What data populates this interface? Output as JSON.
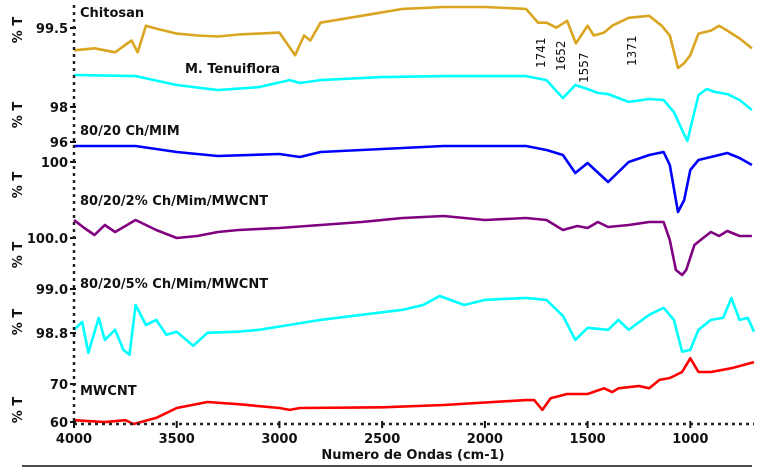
{
  "chart_data": {
    "type": "line",
    "layout": "stacked-panels",
    "xlabel": "Numero de Ondas (cm-1)",
    "xlim": [
      4000,
      690
    ],
    "xticks": [
      4000,
      3500,
      3000,
      2500,
      2000,
      1500,
      1000
    ],
    "x_reversed": true,
    "grid": false,
    "annotations": [
      "1741",
      "1652",
      "1557",
      "1371"
    ],
    "panels": [
      {
        "name": "Chitosan",
        "ylabel": "% T",
        "color": "#DAA520",
        "ylim": [
          99.08,
          99.74
        ],
        "yticks": [
          "99.5"
        ],
        "x": [
          4000,
          3900,
          3800,
          3720,
          3690,
          3650,
          3600,
          3500,
          3400,
          3300,
          3200,
          3000,
          2924,
          2880,
          2850,
          2800,
          2600,
          2400,
          2200,
          2000,
          1800,
          1741,
          1700,
          1652,
          1600,
          1557,
          1500,
          1470,
          1420,
          1380,
          1300,
          1200,
          1140,
          1100,
          1060,
          1030,
          1000,
          960,
          900,
          860,
          820,
          760,
          700
        ],
        "y": [
          99.28,
          99.3,
          99.26,
          99.38,
          99.26,
          99.53,
          99.5,
          99.45,
          99.43,
          99.42,
          99.44,
          99.46,
          99.23,
          99.43,
          99.38,
          99.56,
          99.63,
          99.7,
          99.72,
          99.72,
          99.7,
          99.56,
          99.56,
          99.51,
          99.58,
          99.35,
          99.53,
          99.43,
          99.46,
          99.53,
          99.61,
          99.63,
          99.53,
          99.43,
          99.1,
          99.15,
          99.23,
          99.45,
          99.48,
          99.53,
          99.48,
          99.4,
          99.3
        ]
      },
      {
        "name": "M. Tenuiflora",
        "ylabel": "% T",
        "color": "#00FFFF",
        "ylim": [
          95.83,
          100.23
        ],
        "yticks": [
          "98",
          "96"
        ],
        "x": [
          4000,
          3700,
          3500,
          3300,
          3100,
          2950,
          2900,
          2800,
          2500,
          2200,
          1800,
          1700,
          1620,
          1560,
          1500,
          1450,
          1400,
          1300,
          1200,
          1130,
          1080,
          1040,
          1014,
          990,
          960,
          920,
          880,
          820,
          760,
          700
        ],
        "y": [
          99.83,
          99.77,
          99.26,
          98.97,
          99.14,
          99.54,
          99.37,
          99.54,
          99.71,
          99.77,
          99.77,
          99.54,
          98.51,
          99.26,
          99.03,
          98.8,
          98.74,
          98.29,
          98.46,
          98.4,
          97.71,
          96.69,
          96.06,
          97.26,
          98.69,
          99.03,
          98.86,
          98.74,
          98.4,
          97.83
        ]
      },
      {
        "name": "80/20 Ch/MIM",
        "ylabel": "% T",
        "color": "#0000FF",
        "ylim": [
          97.35,
          101.1
        ],
        "yticks": [
          "100"
        ],
        "x": [
          4000,
          3700,
          3500,
          3300,
          3000,
          2900,
          2800,
          2500,
          2200,
          1800,
          1700,
          1620,
          1560,
          1500,
          1400,
          1300,
          1200,
          1130,
          1100,
          1060,
          1030,
          1000,
          960,
          900,
          820,
          760,
          700
        ],
        "y": [
          100.8,
          100.8,
          100.5,
          100.3,
          100.4,
          100.25,
          100.5,
          100.65,
          100.8,
          100.8,
          100.6,
          100.35,
          99.45,
          99.95,
          99.0,
          100.0,
          100.35,
          100.5,
          99.85,
          97.5,
          98.1,
          99.6,
          100.1,
          100.25,
          100.45,
          100.2,
          99.85
        ]
      },
      {
        "name": "80/20/2% Ch/Mim/MWCNT",
        "ylabel": "% T",
        "color": "#800080",
        "ylim": [
          99.06,
          100.52
        ],
        "yticks": [
          "100.0"
        ],
        "x": [
          4000,
          3950,
          3900,
          3850,
          3800,
          3700,
          3600,
          3500,
          3400,
          3300,
          3200,
          3000,
          2800,
          2600,
          2400,
          2200,
          2000,
          1800,
          1700,
          1620,
          1550,
          1500,
          1450,
          1400,
          1300,
          1200,
          1130,
          1100,
          1070,
          1040,
          1020,
          980,
          950,
          900,
          860,
          820,
          760,
          700
        ],
        "y": [
          100.36,
          100.2,
          100.06,
          100.26,
          100.12,
          100.36,
          100.16,
          100.0,
          100.04,
          100.12,
          100.16,
          100.2,
          100.26,
          100.32,
          100.4,
          100.44,
          100.36,
          100.4,
          100.36,
          100.16,
          100.24,
          100.2,
          100.32,
          100.22,
          100.26,
          100.32,
          100.32,
          99.96,
          99.36,
          99.26,
          99.36,
          99.86,
          99.96,
          100.12,
          100.04,
          100.14,
          100.04,
          100.04
        ]
      },
      {
        "name": "80/20/5% Ch/Mim/MWCNT",
        "ylabel": "% T",
        "color": "#00FFFF",
        "ylim": [
          98.69,
          98.986
        ],
        "yticks": [
          "99.0",
          "98.8"
        ],
        "x": [
          4000,
          3960,
          3930,
          3880,
          3850,
          3800,
          3760,
          3730,
          3700,
          3650,
          3600,
          3550,
          3500,
          3420,
          3350,
          3200,
          3100,
          2950,
          2800,
          2600,
          2400,
          2300,
          2220,
          2100,
          2000,
          1800,
          1700,
          1620,
          1560,
          1500,
          1400,
          1350,
          1300,
          1200,
          1130,
          1080,
          1040,
          1000,
          960,
          900,
          840,
          800,
          760,
          720,
          690
        ],
        "y": [
          98.814,
          98.85,
          98.709,
          98.868,
          98.768,
          98.814,
          98.723,
          98.7,
          98.927,
          98.836,
          98.859,
          98.791,
          98.805,
          98.741,
          98.8,
          98.805,
          98.814,
          98.836,
          98.859,
          98.882,
          98.905,
          98.927,
          98.968,
          98.927,
          98.95,
          98.959,
          98.95,
          98.877,
          98.768,
          98.823,
          98.814,
          98.859,
          98.814,
          98.882,
          98.914,
          98.859,
          98.714,
          98.723,
          98.814,
          98.859,
          98.868,
          98.959,
          98.859,
          98.868,
          98.805
        ]
      },
      {
        "name": "MWCNT",
        "ylabel": "% T",
        "color": "#FF0000",
        "ylim": [
          59.5,
          77.4
        ],
        "yticks": [
          "70",
          "60"
        ],
        "x": [
          4000,
          3850,
          3750,
          3710,
          3600,
          3500,
          3350,
          3200,
          3000,
          2950,
          2900,
          2500,
          2200,
          1800,
          1760,
          1720,
          1680,
          1600,
          1500,
          1420,
          1380,
          1350,
          1250,
          1200,
          1150,
          1100,
          1040,
          1000,
          960,
          900,
          800,
          690
        ],
        "y": [
          60.5,
          60.0,
          60.5,
          59.5,
          61.1,
          63.7,
          65.3,
          64.7,
          63.7,
          63.2,
          63.7,
          63.9,
          64.5,
          65.8,
          65.8,
          63.2,
          66.3,
          67.4,
          67.4,
          68.9,
          67.9,
          68.9,
          69.5,
          68.9,
          71.1,
          71.6,
          73.2,
          76.8,
          73.2,
          73.2,
          74.2,
          75.8
        ]
      }
    ]
  }
}
